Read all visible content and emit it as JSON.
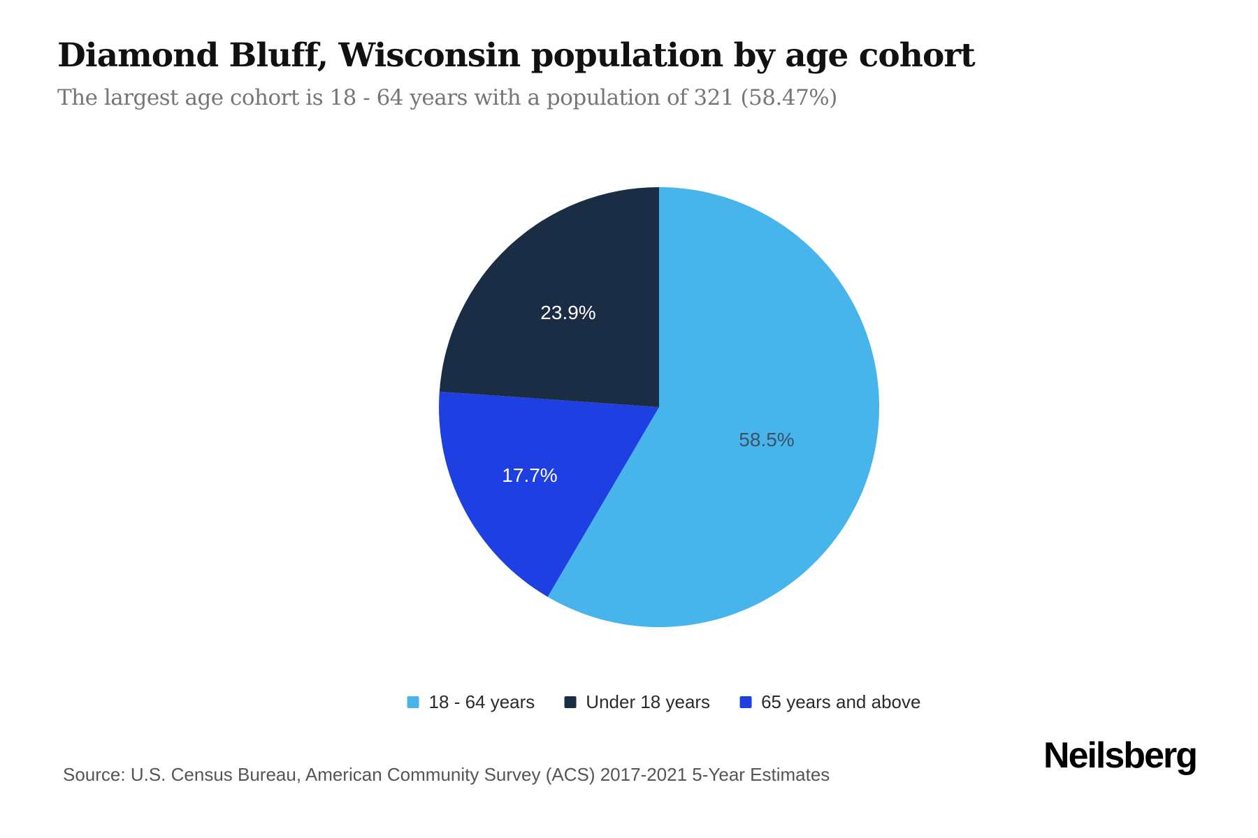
{
  "header": {
    "title": "Diamond Bluff, Wisconsin population by age cohort",
    "subtitle": "The largest age cohort is 18 - 64 years with a population of 321 (58.47%)"
  },
  "chart_data": {
    "type": "pie",
    "title": "Diamond Bluff, Wisconsin population by age cohort",
    "unit": "percent",
    "slices": [
      {
        "label": "18 - 64 years",
        "value": 58.5,
        "display": "58.5%",
        "color": "#47b4ec",
        "label_color": "#3c5266"
      },
      {
        "label": "Under 18 years",
        "value": 23.9,
        "display": "23.9%",
        "color": "#1b2d45",
        "label_color": "#ffffff"
      },
      {
        "label": "65 years and above",
        "value": 17.7,
        "display": "17.7%",
        "color": "#1e40e2",
        "label_color": "#ffffff"
      }
    ],
    "clockwise_order_from_top": [
      "18 - 64 years",
      "65 years and above",
      "Under 18 years"
    ],
    "start_angle_deg": 0,
    "legend_position": "bottom",
    "largest_cohort": {
      "label": "18 - 64 years",
      "population": 321,
      "share": "58.47%"
    }
  },
  "footer": {
    "source": "Source: U.S. Census Bureau, American Community Survey (ACS) 2017-2021 5-Year Estimates",
    "brand": "Neilsberg"
  }
}
